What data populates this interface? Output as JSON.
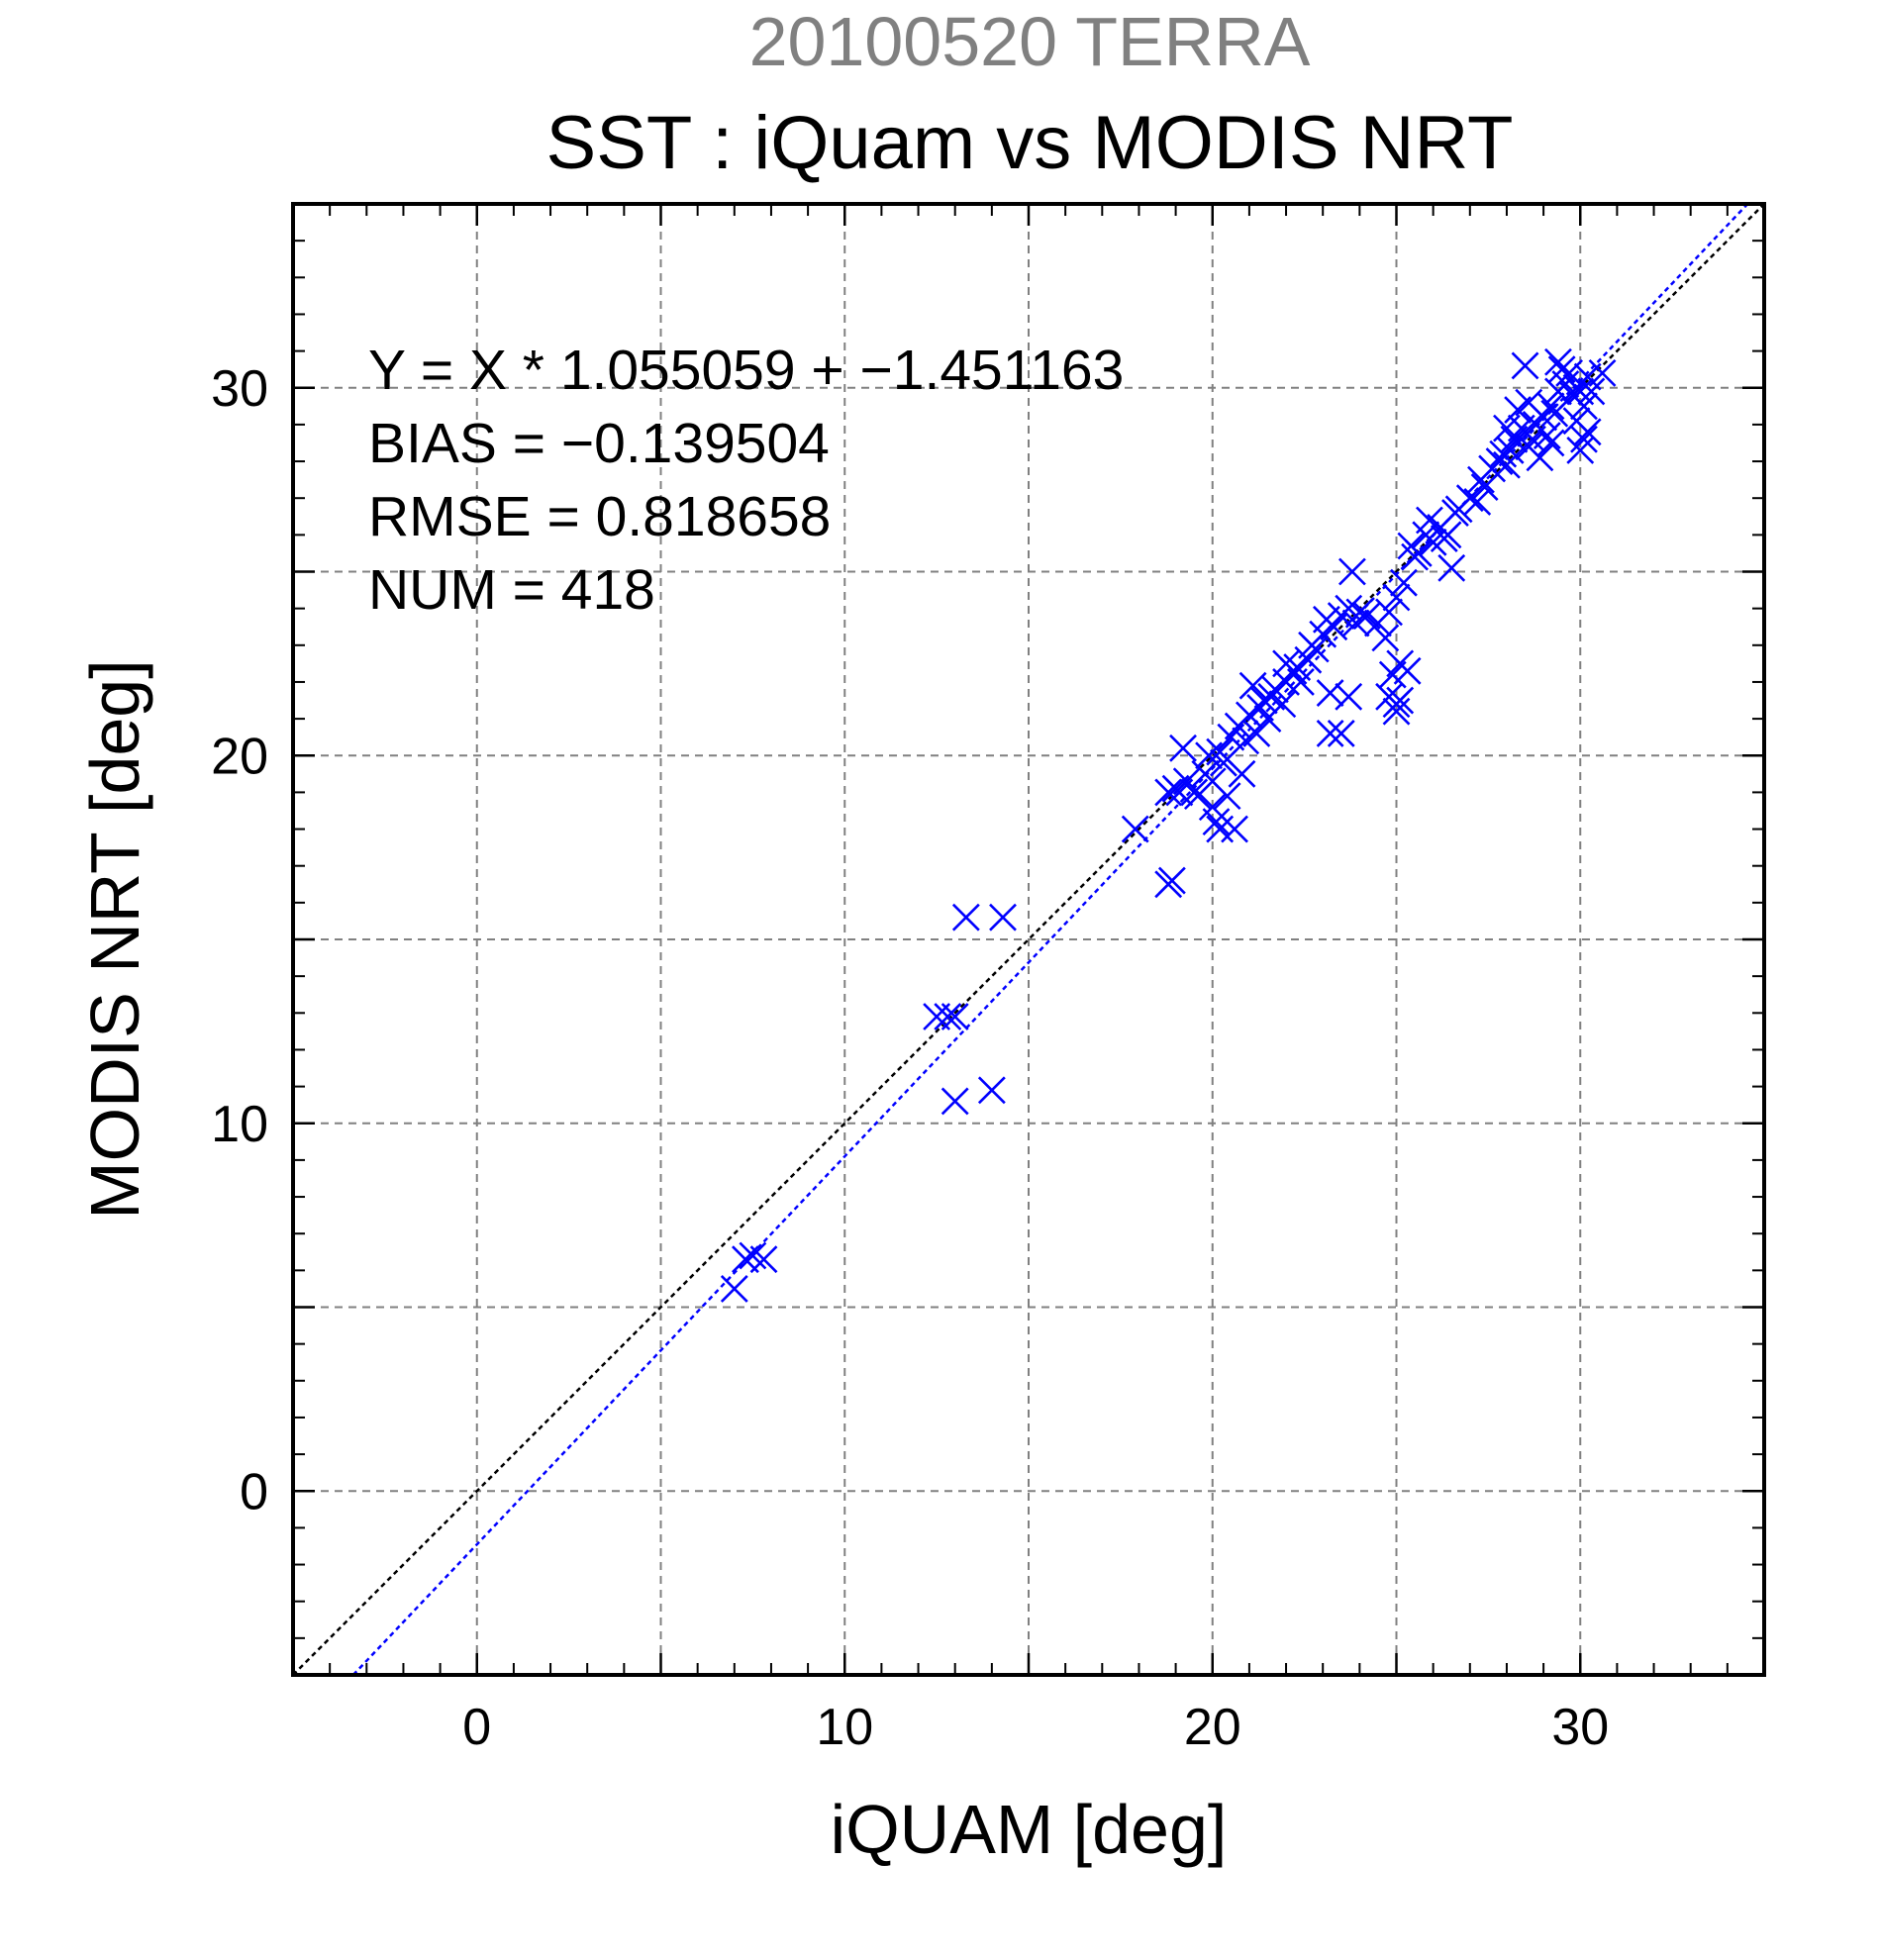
{
  "chart_data": {
    "type": "scatter",
    "title_top": "20100520 TERRA",
    "title": "SST : iQuam vs MODIS NRT",
    "xlabel": "iQUAM [deg]",
    "ylabel": "MODIS NRT [deg]",
    "xlim": [
      -5,
      35
    ],
    "ylim": [
      -5,
      35
    ],
    "x_ticks": [
      0,
      10,
      20,
      30
    ],
    "y_ticks": [
      0,
      10,
      20,
      30
    ],
    "x_tick_labels": [
      "0",
      "10",
      "20",
      "30"
    ],
    "y_tick_labels": [
      "0",
      "10",
      "20",
      "30"
    ],
    "grid": true,
    "grid_step": 5,
    "marker": "x",
    "colors": {
      "points": "#0000ff",
      "fit_line": "#0000ff",
      "identity_line": "#000000",
      "title_top": "#808080"
    },
    "stats": [
      "Y = X * 1.055059 + −1.451163",
      "BIAS = −0.139504",
      "RMSE = 0.818658",
      "NUM = 418"
    ],
    "fit": {
      "slope": 1.055059,
      "intercept": -1.451163
    },
    "identity": {
      "slope": 1,
      "intercept": 0
    },
    "series": [
      {
        "x": [
          7.0,
          7.3,
          7.5,
          7.8,
          12.5,
          12.8,
          13.0,
          13.3,
          14.3,
          13.0,
          14.0,
          17.9,
          18.8,
          18.9,
          18.8,
          19.0,
          19.1,
          19.3,
          19.5,
          19.2,
          19.6,
          19.8,
          19.9,
          20.0,
          20.1,
          20.3,
          20.5,
          20.2,
          20.4,
          20.6,
          20.8,
          20.0,
          20.2,
          20.7,
          20.9,
          21.0,
          21.2,
          21.4,
          21.5,
          21.7,
          21.1,
          21.3,
          21.6,
          21.9,
          22.0,
          22.2,
          22.4,
          22.6,
          22.8,
          22.0,
          22.3,
          22.7,
          23.0,
          23.1,
          23.3,
          23.5,
          23.7,
          23.9,
          24.0,
          23.2,
          23.5,
          23.2,
          23.7,
          24.2,
          24.5,
          24.8,
          25.0,
          25.2,
          24.9,
          25.1,
          25.3,
          24.7,
          25.0,
          24.8,
          25.0,
          25.1,
          23.8,
          25.4,
          25.6,
          25.8,
          26.0,
          26.2,
          26.4,
          25.5,
          25.9,
          26.3,
          26.5,
          26.7,
          27.0,
          27.2,
          27.4,
          27.6,
          27.8,
          26.6,
          27.3,
          27.9,
          28.0,
          28.2,
          28.4,
          28.6,
          28.8,
          29.0,
          28.1,
          28.5,
          28.9,
          29.2,
          29.4,
          29.6,
          29.8,
          30.0,
          30.2,
          29.1,
          29.5,
          29.9,
          30.1,
          30.3,
          28.7,
          29.3,
          30.0,
          30.2,
          29.7,
          28.3,
          30.6,
          28.5,
          29.9,
          30.1,
          29.2,
          28.0,
          28.6,
          29.4
        ],
        "y": [
          5.5,
          6.3,
          6.4,
          6.3,
          12.9,
          12.9,
          12.9,
          15.6,
          15.6,
          10.6,
          10.9,
          18.0,
          16.5,
          16.6,
          19.0,
          19.1,
          19.0,
          19.3,
          19.0,
          20.2,
          18.9,
          19.5,
          20.0,
          18.6,
          18.2,
          19.8,
          20.5,
          18.0,
          18.9,
          18.0,
          19.5,
          19.3,
          20.1,
          20.8,
          20.4,
          21.1,
          20.6,
          21.5,
          21.0,
          21.8,
          21.9,
          21.3,
          21.6,
          21.4,
          22.0,
          22.3,
          22.0,
          22.6,
          22.9,
          22.5,
          22.4,
          23.0,
          23.3,
          23.7,
          23.5,
          23.8,
          24.0,
          23.6,
          23.9,
          20.6,
          20.6,
          21.7,
          21.6,
          23.8,
          23.6,
          23.9,
          24.3,
          24.7,
          22.2,
          22.5,
          22.3,
          23.2,
          21.4,
          21.6,
          21.2,
          21.5,
          25.0,
          25.7,
          25.5,
          26.0,
          25.8,
          26.2,
          26.0,
          25.4,
          26.4,
          25.9,
          25.1,
          26.7,
          27.0,
          26.9,
          27.3,
          27.8,
          28.0,
          26.6,
          27.5,
          28.2,
          27.9,
          28.6,
          28.9,
          28.4,
          29.0,
          29.2,
          28.3,
          28.8,
          28.1,
          29.5,
          29.9,
          30.1,
          29.8,
          29.9,
          30.3,
          28.7,
          30.5,
          30.0,
          29.5,
          29.9,
          28.6,
          29.3,
          28.3,
          28.8,
          30.4,
          29.4,
          30.4,
          30.6,
          29.1,
          28.6,
          28.5,
          28.9,
          29.6,
          30.7
        ]
      }
    ]
  }
}
